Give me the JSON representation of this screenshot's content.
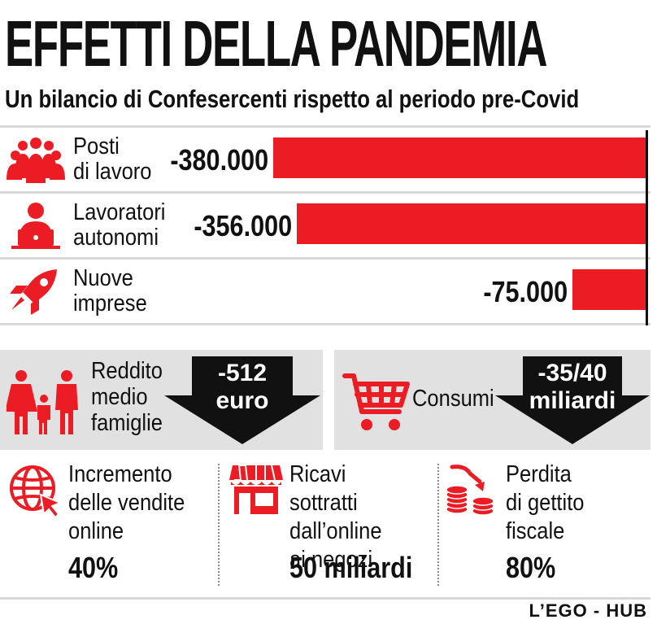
{
  "title": "EFFETTI DELLA PANDEMIA",
  "subtitle": "Un bilancio di Confesercenti rispetto al periodo pre-Covid",
  "accent_color": "#ec1c24",
  "chart_data": {
    "type": "bar",
    "orientation": "horizontal",
    "categories": [
      "Posti\ndi lavoro",
      "Lavoratori\nautonomi",
      "Nuove\nimprese"
    ],
    "values": [
      -380000,
      -356000,
      -75000
    ],
    "value_labels": [
      "-380.000",
      "-356.000",
      "-75.000"
    ],
    "icons": [
      "people-group-icon",
      "worker-laptop-icon",
      "rocket-icon"
    ],
    "xlim": [
      -390000,
      0
    ],
    "grid": false,
    "bar_color": "#ec1c24"
  },
  "panels": [
    {
      "label": "Reddito\nmedio\nfamiglie",
      "arrow_text": "-512\neuro",
      "icon": "family-icon"
    },
    {
      "label": "Consumi",
      "arrow_text": "-35/40\nmiliardi",
      "icon": "shopping-cart-icon"
    }
  ],
  "stats": [
    {
      "label": "Incremento\ndelle vendite\nonline",
      "value": "40%",
      "icon": "globe-cursor-icon"
    },
    {
      "label": "Ricavi sottratti\ndall’online\nai negozi",
      "value": "50 miliardi",
      "icon": "shop-icon"
    },
    {
      "label": "Perdita\ndi gettito\nfiscale",
      "value": "80%",
      "icon": "coins-decline-icon"
    }
  ],
  "brand": "L’EGO - HUB"
}
